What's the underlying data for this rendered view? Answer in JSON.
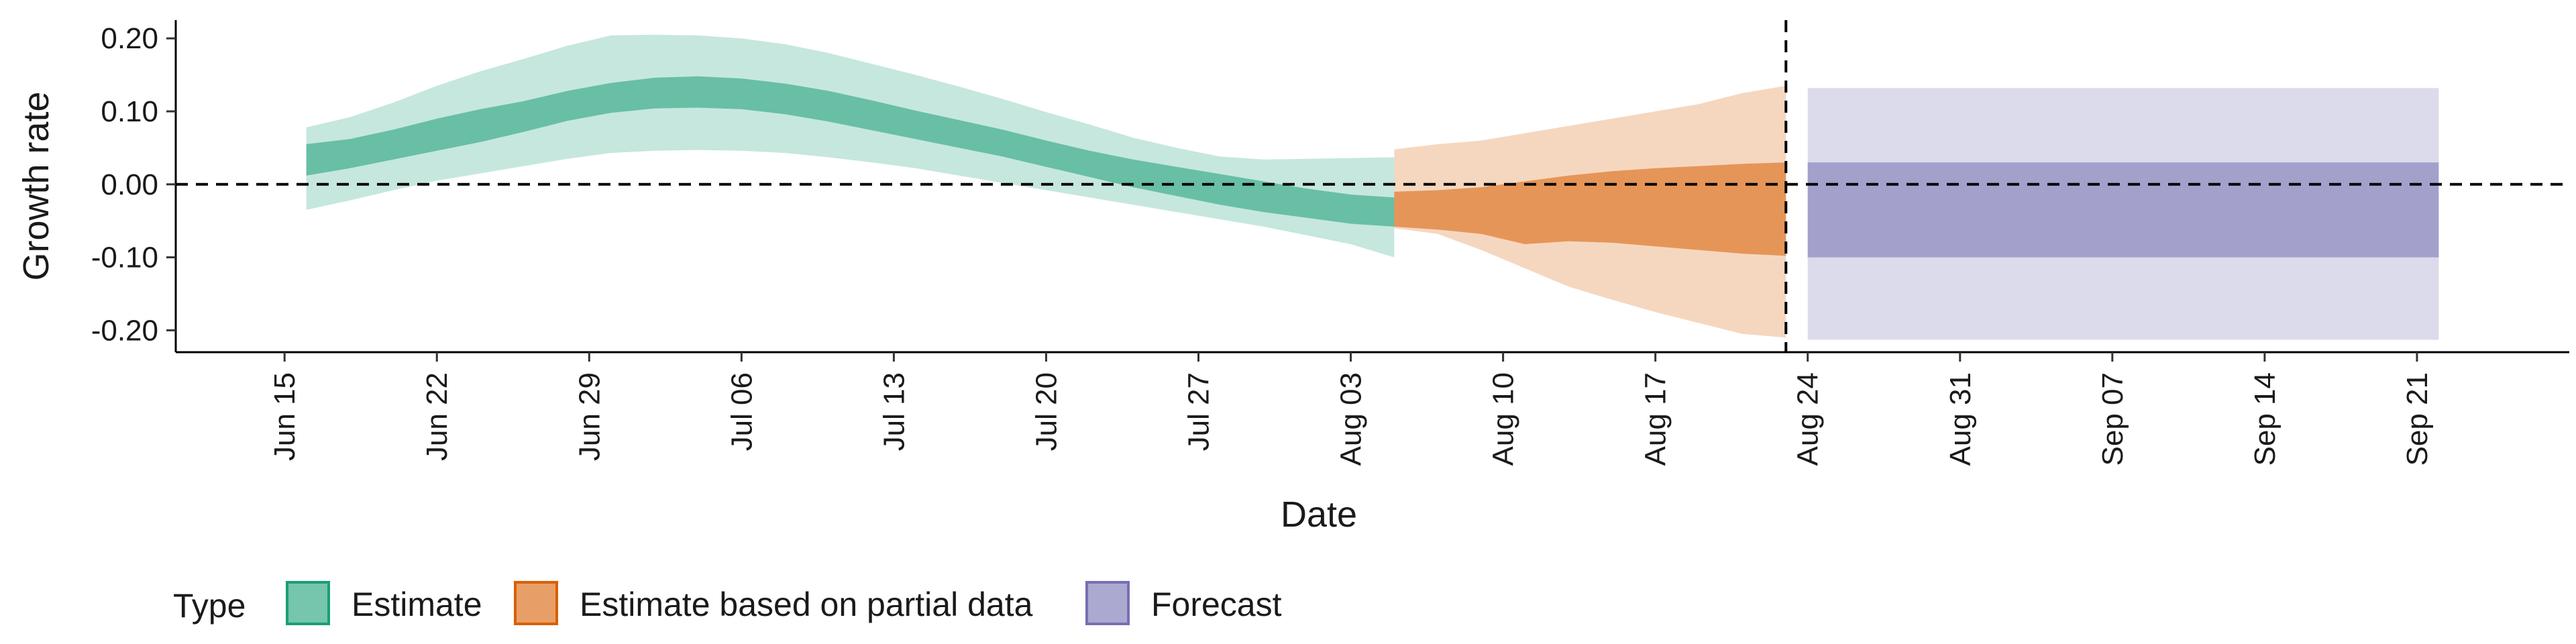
{
  "chart_data": {
    "type": "area",
    "xlabel": "Date",
    "ylabel": "Growth rate",
    "x_ticks": [
      "Jun 15",
      "Jun 22",
      "Jun 29",
      "Jul 06",
      "Jul 13",
      "Jul 20",
      "Jul 27",
      "Aug 03",
      "Aug 10",
      "Aug 17",
      "Aug 24",
      "Aug 31",
      "Sep 07",
      "Sep 14",
      "Sep 21"
    ],
    "y_ticks": [
      "0.20",
      "0.10",
      "0.00",
      "-0.10",
      "-0.20"
    ],
    "ylim": [
      -0.23,
      0.225
    ],
    "xlim": [
      "Jun 10",
      "Sep 28"
    ],
    "reference_lines": {
      "y": 0.0,
      "x": "Aug 23",
      "style": "dashed"
    },
    "legend": {
      "title": "Type",
      "position": "bottom-left"
    },
    "colors": {
      "estimate": "#1b9e77",
      "partial": "#d95f02",
      "forecast": "#7570b3"
    },
    "series": [
      {
        "name": "Estimate",
        "color_key": "estimate",
        "x": [
          "Jun 16",
          "Jun 18",
          "Jun 20",
          "Jun 22",
          "Jun 24",
          "Jun 26",
          "Jun 28",
          "Jun 30",
          "Jul 02",
          "Jul 04",
          "Jul 06",
          "Jul 08",
          "Jul 10",
          "Jul 12",
          "Jul 14",
          "Jul 16",
          "Jul 18",
          "Jul 20",
          "Jul 22",
          "Jul 24",
          "Jul 26",
          "Jul 28",
          "Jul 30",
          "Aug 01",
          "Aug 03",
          "Aug 05"
        ],
        "outer_lower": [
          -0.035,
          -0.022,
          -0.008,
          0.005,
          0.015,
          0.025,
          0.035,
          0.043,
          0.046,
          0.047,
          0.046,
          0.043,
          0.037,
          0.03,
          0.022,
          0.012,
          0.002,
          -0.008,
          -0.018,
          -0.028,
          -0.038,
          -0.048,
          -0.058,
          -0.07,
          -0.082,
          -0.1
        ],
        "inner_lower": [
          0.012,
          0.022,
          0.034,
          0.046,
          0.058,
          0.072,
          0.087,
          0.098,
          0.104,
          0.105,
          0.103,
          0.096,
          0.086,
          0.074,
          0.062,
          0.05,
          0.038,
          0.024,
          0.01,
          -0.004,
          -0.016,
          -0.028,
          -0.038,
          -0.046,
          -0.054,
          -0.058
        ],
        "inner_upper": [
          0.055,
          0.062,
          0.075,
          0.09,
          0.103,
          0.114,
          0.128,
          0.139,
          0.146,
          0.148,
          0.145,
          0.138,
          0.128,
          0.115,
          0.101,
          0.088,
          0.075,
          0.06,
          0.046,
          0.034,
          0.024,
          0.014,
          0.004,
          -0.006,
          -0.014,
          -0.018
        ],
        "outer_upper": [
          0.078,
          0.092,
          0.112,
          0.135,
          0.155,
          0.172,
          0.19,
          0.204,
          0.205,
          0.204,
          0.2,
          0.192,
          0.18,
          0.165,
          0.15,
          0.134,
          0.117,
          0.099,
          0.082,
          0.064,
          0.05,
          0.038,
          0.034,
          0.035,
          0.036,
          0.037
        ]
      },
      {
        "name": "Estimate based on partial data",
        "color_key": "partial",
        "x": [
          "Aug 05",
          "Aug 07",
          "Aug 09",
          "Aug 11",
          "Aug 13",
          "Aug 15",
          "Aug 17",
          "Aug 19",
          "Aug 21",
          "Aug 23"
        ],
        "outer_lower": [
          -0.06,
          -0.068,
          -0.09,
          -0.115,
          -0.14,
          -0.158,
          -0.175,
          -0.19,
          -0.205,
          -0.21
        ],
        "inner_lower": [
          -0.058,
          -0.062,
          -0.068,
          -0.082,
          -0.078,
          -0.08,
          -0.085,
          -0.09,
          -0.095,
          -0.098
        ],
        "inner_upper": [
          -0.01,
          -0.008,
          -0.004,
          0.004,
          0.012,
          0.018,
          0.022,
          0.025,
          0.028,
          0.03
        ],
        "outer_upper": [
          0.048,
          0.055,
          0.06,
          0.07,
          0.08,
          0.09,
          0.1,
          0.11,
          0.125,
          0.135
        ]
      },
      {
        "name": "Forecast",
        "color_key": "forecast",
        "x": [
          "Aug 24",
          "Sep 22"
        ],
        "outer_lower": [
          -0.213,
          -0.213
        ],
        "inner_lower": [
          -0.1,
          -0.1
        ],
        "inner_upper": [
          0.03,
          0.03
        ],
        "outer_upper": [
          0.132,
          0.132
        ]
      }
    ]
  }
}
